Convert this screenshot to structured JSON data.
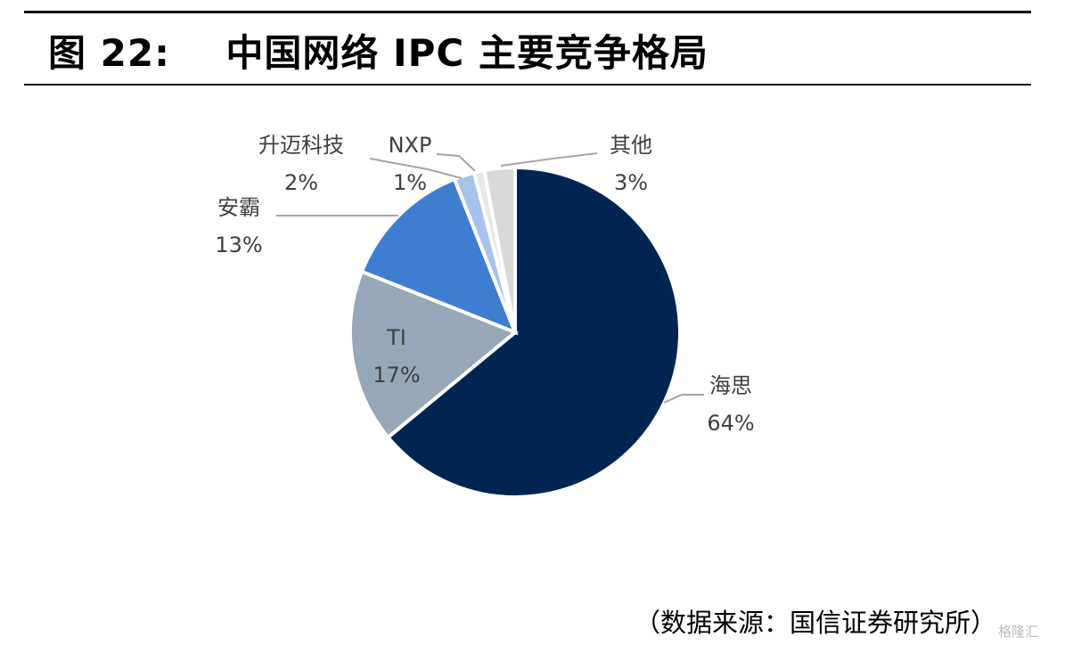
{
  "header": {
    "title": "图 22:    中国网络 IPC 主要竞争格局"
  },
  "footer": {
    "source": "（数据来源：国信证券研究所）",
    "watermark": "格隆汇"
  },
  "chart_data": {
    "type": "pie",
    "title": "中国网络 IPC 主要竞争格局",
    "start_angle": "12 o'clock, clockwise",
    "slices": [
      {
        "label": "海思",
        "value": 64,
        "pct": "64%",
        "color": "#002553"
      },
      {
        "label": "TI",
        "value": 17,
        "pct": "17%",
        "color": "#97a7b8"
      },
      {
        "label": "安霸",
        "value": 13,
        "pct": "13%",
        "color": "#3f7dd0"
      },
      {
        "label": "升迈科技",
        "value": 2,
        "pct": "2%",
        "color": "#a7c3eb"
      },
      {
        "label": "NXP",
        "value": 1,
        "pct": "1%",
        "color": "#e8e8e8"
      },
      {
        "label": "其他",
        "value": 3,
        "pct": "3%",
        "color": "#d9d9d9"
      }
    ]
  }
}
